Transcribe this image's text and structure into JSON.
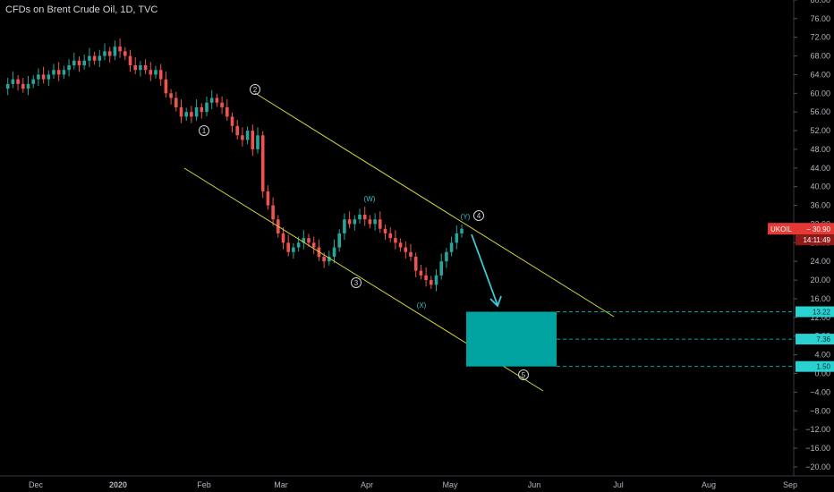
{
  "title": "CFDs on Brent Crude Oil, 1D, TVC",
  "colors": {
    "background": "#000000",
    "up": "#26a69a",
    "down": "#ef5350",
    "channel": "#d4d43a",
    "target_box": "#00a39f",
    "arrow": "#3ccbd6",
    "price_tag": "#e53935",
    "level_tag": "#2ad1d1"
  },
  "chart_data": {
    "type": "candlestick",
    "instrument": "CFDs on Brent Crude Oil",
    "interval": "1D",
    "source": "TVC",
    "ylim": [
      -22,
      80
    ],
    "y_ticks": [
      "-20.00",
      "-16.00",
      "-12.00",
      "-8.00",
      "-4.00",
      "0.00",
      "4.00",
      "8.00",
      "12.00",
      "16.00",
      "20.00",
      "24.00",
      "28.00",
      "32.00",
      "36.00",
      "40.00",
      "44.00",
      "48.00",
      "52.00",
      "56.00",
      "60.00",
      "64.00",
      "68.00",
      "72.00",
      "76.00",
      "80.00"
    ],
    "x_ticks": [
      "Dec",
      "2020",
      "Feb",
      "Mar",
      "Apr",
      "May",
      "Jun",
      "Jul",
      "Aug",
      "Sep"
    ],
    "price_path": [
      61,
      62,
      63,
      62,
      61,
      62,
      63,
      64,
      63,
      64,
      65,
      64,
      65,
      66,
      67,
      66,
      67,
      68,
      67,
      68,
      69,
      68,
      70,
      69,
      68,
      66,
      65,
      66,
      65,
      64,
      65,
      63,
      60,
      59,
      57,
      55,
      56,
      55,
      57,
      56,
      58,
      59,
      58,
      57,
      55,
      53,
      51,
      50,
      52,
      48,
      51,
      39,
      36,
      33,
      30,
      28,
      26,
      27,
      28,
      29,
      28,
      27,
      25,
      24,
      25,
      27,
      30,
      33,
      32,
      33,
      34,
      33,
      32,
      33,
      31,
      30,
      29,
      28,
      27,
      26,
      25,
      22,
      21,
      20,
      19,
      21,
      24,
      26,
      28,
      30,
      31
    ],
    "current_price_tag": {
      "symbol": "UKOIL",
      "price": "30.90",
      "countdown": "14:11:49"
    },
    "target_levels": [
      "13.22",
      "7.36",
      "1.50"
    ],
    "wave_labels": {
      "w1": "1",
      "w2": "2",
      "w3": "3",
      "w4": "4",
      "w5": "5",
      "W": "(W)",
      "X": "(X)",
      "Y": "(Y)"
    }
  }
}
